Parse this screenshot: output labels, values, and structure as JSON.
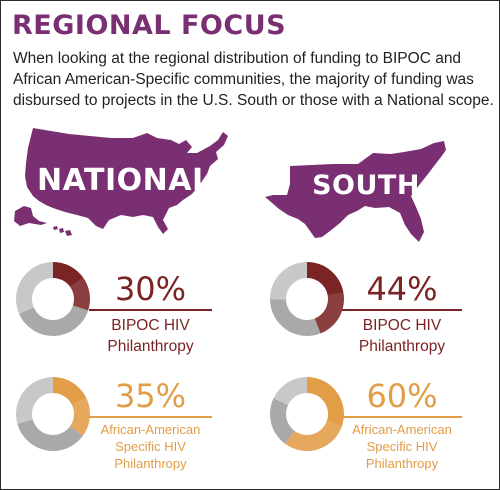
{
  "title": "REGIONAL FOCUS",
  "intro": "When looking at the regional distribution of funding to BIPOC and African American-Specific communities, the majority of funding was disbursed to projects in the U.S. South or those with a National scope.",
  "colors": {
    "title": "#7a2f73",
    "map": "#7a2f73",
    "bipoc": "#7b2424",
    "african_american": "#e29d47",
    "track": "#a9a9a9"
  },
  "regions": {
    "national": {
      "label": "NATIONAL"
    },
    "south": {
      "label": "SOUTH"
    }
  },
  "chart_data": [
    {
      "type": "pie",
      "variant": "donut",
      "region": "NATIONAL",
      "label": "BIPOC HIV\nPhilanthropy",
      "value_text": "30%",
      "values": [
        30,
        70
      ],
      "color": "#7b2424"
    },
    {
      "type": "pie",
      "variant": "donut",
      "region": "SOUTH",
      "label": "BIPOC HIV\nPhilanthropy",
      "value_text": "44%",
      "values": [
        44,
        56
      ],
      "color": "#7b2424"
    },
    {
      "type": "pie",
      "variant": "donut",
      "region": "NATIONAL",
      "label": "African-American\nSpecific HIV\nPhilanthropy",
      "value_text": "35%",
      "values": [
        35,
        65
      ],
      "color": "#e29d47"
    },
    {
      "type": "pie",
      "variant": "donut",
      "region": "SOUTH",
      "label": "African-American\nSpecific HIV\nPhilanthropy",
      "value_text": "60%",
      "values": [
        60,
        40
      ],
      "color": "#e29d47"
    }
  ]
}
